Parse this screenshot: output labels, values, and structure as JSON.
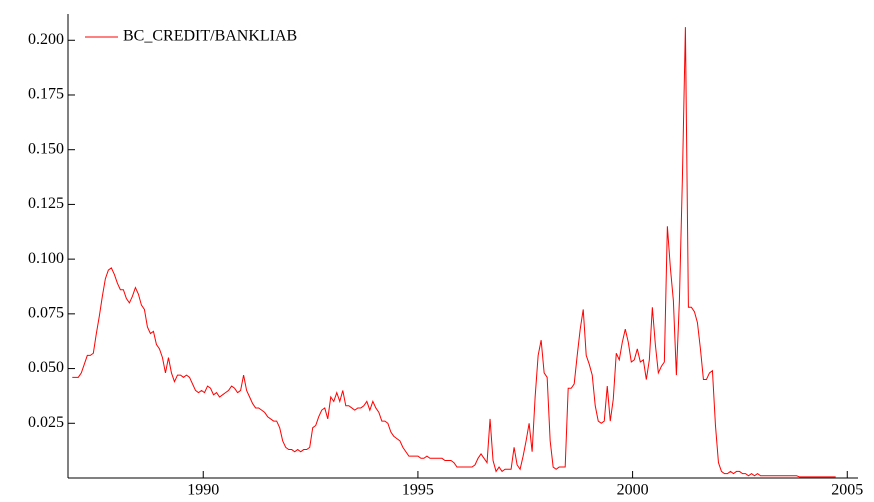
{
  "chart_data": {
    "type": "line",
    "x": [
      1986.95,
      1987.02,
      1987.09,
      1987.16,
      1987.23,
      1987.3,
      1987.37,
      1987.44,
      1987.51,
      1987.58,
      1987.65,
      1987.72,
      1987.79,
      1987.86,
      1987.93,
      1988,
      1988.07,
      1988.14,
      1988.21,
      1988.28,
      1988.35,
      1988.42,
      1988.49,
      1988.56,
      1988.63,
      1988.7,
      1988.77,
      1988.84,
      1988.91,
      1988.98,
      1989.05,
      1989.12,
      1989.19,
      1989.26,
      1989.33,
      1989.4,
      1989.47,
      1989.54,
      1989.61,
      1989.68,
      1989.75,
      1989.82,
      1989.89,
      1989.96,
      1990.03,
      1990.1,
      1990.17,
      1990.24,
      1990.31,
      1990.38,
      1990.45,
      1990.52,
      1990.59,
      1990.66,
      1990.73,
      1990.8,
      1990.87,
      1990.94,
      1991.01,
      1991.08,
      1991.15,
      1991.22,
      1991.29,
      1991.36,
      1991.43,
      1991.5,
      1991.57,
      1991.64,
      1991.71,
      1991.78,
      1991.85,
      1991.92,
      1991.99,
      1992.06,
      1992.13,
      1992.2,
      1992.27,
      1992.34,
      1992.41,
      1992.48,
      1992.55,
      1992.62,
      1992.69,
      1992.76,
      1992.83,
      1992.9,
      1992.97,
      1993.04,
      1993.11,
      1993.18,
      1993.25,
      1993.32,
      1993.39,
      1993.46,
      1993.53,
      1993.6,
      1993.67,
      1993.74,
      1993.81,
      1993.88,
      1993.95,
      1994.02,
      1994.09,
      1994.16,
      1994.23,
      1994.3,
      1994.37,
      1994.44,
      1994.51,
      1994.58,
      1994.65,
      1994.72,
      1994.79,
      1994.86,
      1994.93,
      1995,
      1995.07,
      1995.14,
      1995.21,
      1995.28,
      1995.35,
      1995.42,
      1995.49,
      1995.56,
      1995.63,
      1995.7,
      1995.77,
      1995.84,
      1995.91,
      1995.98,
      1996.05,
      1996.12,
      1996.19,
      1996.26,
      1996.33,
      1996.4,
      1996.47,
      1996.54,
      1996.61,
      1996.68,
      1996.75,
      1996.82,
      1996.89,
      1996.96,
      1997.03,
      1997.1,
      1997.17,
      1997.24,
      1997.31,
      1997.38,
      1997.45,
      1997.52,
      1997.59,
      1997.66,
      1997.73,
      1997.8,
      1997.87,
      1997.94,
      1998.01,
      1998.08,
      1998.15,
      1998.22,
      1998.29,
      1998.36,
      1998.43,
      1998.5,
      1998.57,
      1998.64,
      1998.71,
      1998.78,
      1998.85,
      1998.92,
      1998.99,
      1999.06,
      1999.13,
      1999.2,
      1999.27,
      1999.34,
      1999.41,
      1999.48,
      1999.55,
      1999.62,
      1999.69,
      1999.76,
      1999.83,
      1999.9,
      1999.97,
      2000.04,
      2000.11,
      2000.18,
      2000.25,
      2000.32,
      2000.39,
      2000.46,
      2000.53,
      2000.6,
      2000.67,
      2000.74,
      2000.81,
      2000.88,
      2000.95,
      2001.02,
      2001.09,
      2001.16,
      2001.23,
      2001.3,
      2001.37,
      2001.44,
      2001.51,
      2001.58,
      2001.65,
      2001.72,
      2001.79,
      2001.86,
      2001.93,
      2002,
      2002.07,
      2002.14,
      2002.21,
      2002.28,
      2002.35,
      2002.42,
      2002.49,
      2002.56,
      2002.63,
      2002.7,
      2002.77,
      2002.84,
      2002.91,
      2002.98,
      2003.05,
      2003.12,
      2003.19,
      2003.26,
      2003.33,
      2003.4,
      2003.47,
      2003.54,
      2003.61,
      2003.68,
      2003.75,
      2003.82,
      2003.89,
      2003.96,
      2004.03,
      2004.1,
      2004.17,
      2004.24,
      2004.31,
      2004.38,
      2004.45,
      2004.52,
      2004.59,
      2004.66,
      2004.73
    ],
    "series": [
      {
        "name": "BC_CREDIT/BANKLIAB",
        "color": "#ff0000",
        "values": [
          0.046,
          0.046,
          0.046,
          0.048,
          0.052,
          0.056,
          0.056,
          0.057,
          0.066,
          0.074,
          0.083,
          0.091,
          0.095,
          0.096,
          0.093,
          0.089,
          0.086,
          0.086,
          0.082,
          0.08,
          0.083,
          0.087,
          0.084,
          0.079,
          0.077,
          0.069,
          0.066,
          0.067,
          0.061,
          0.059,
          0.055,
          0.048,
          0.055,
          0.048,
          0.044,
          0.047,
          0.047,
          0.046,
          0.047,
          0.046,
          0.043,
          0.04,
          0.039,
          0.04,
          0.039,
          0.042,
          0.041,
          0.038,
          0.039,
          0.037,
          0.038,
          0.039,
          0.04,
          0.042,
          0.041,
          0.039,
          0.04,
          0.047,
          0.04,
          0.037,
          0.034,
          0.032,
          0.032,
          0.031,
          0.03,
          0.028,
          0.027,
          0.026,
          0.026,
          0.023,
          0.017,
          0.014,
          0.013,
          0.013,
          0.012,
          0.013,
          0.012,
          0.013,
          0.013,
          0.014,
          0.023,
          0.024,
          0.028,
          0.031,
          0.032,
          0.027,
          0.037,
          0.035,
          0.039,
          0.035,
          0.04,
          0.033,
          0.033,
          0.032,
          0.031,
          0.032,
          0.032,
          0.033,
          0.035,
          0.031,
          0.035,
          0.032,
          0.03,
          0.026,
          0.026,
          0.025,
          0.021,
          0.019,
          0.018,
          0.017,
          0.014,
          0.012,
          0.01,
          0.01,
          0.01,
          0.01,
          0.009,
          0.009,
          0.01,
          0.009,
          0.009,
          0.009,
          0.009,
          0.009,
          0.008,
          0.008,
          0.008,
          0.007,
          0.005,
          0.005,
          0.005,
          0.005,
          0.005,
          0.005,
          0.006,
          0.009,
          0.011,
          0.009,
          0.007,
          0.027,
          0.008,
          0.003,
          0.005,
          0.003,
          0.004,
          0.004,
          0.004,
          0.014,
          0.006,
          0.004,
          0.01,
          0.017,
          0.025,
          0.012,
          0.037,
          0.056,
          0.063,
          0.048,
          0.046,
          0.017,
          0.005,
          0.004,
          0.005,
          0.005,
          0.005,
          0.041,
          0.041,
          0.043,
          0.056,
          0.068,
          0.077,
          0.056,
          0.052,
          0.047,
          0.033,
          0.026,
          0.025,
          0.026,
          0.042,
          0.026,
          0.036,
          0.057,
          0.054,
          0.062,
          0.068,
          0.062,
          0.053,
          0.054,
          0.059,
          0.053,
          0.054,
          0.045,
          0.054,
          0.078,
          0.061,
          0.048,
          0.051,
          0.053,
          0.115,
          0.096,
          0.081,
          0.047,
          0.081,
          0.137,
          0.206,
          0.078,
          0.078,
          0.076,
          0.071,
          0.059,
          0.045,
          0.045,
          0.048,
          0.049,
          0.024,
          0.007,
          0.003,
          0.002,
          0.002,
          0.003,
          0.002,
          0.003,
          0.003,
          0.002,
          0.002,
          0.001,
          0.002,
          0.001,
          0.002,
          0.001,
          0.001,
          0.001,
          0.001,
          0.001,
          0.001,
          0.001,
          0.001,
          0.001,
          0.001,
          0.001,
          0.001,
          0.001,
          0.0005,
          0.0005,
          0.0005,
          0.0005,
          0.0005,
          0.0005,
          0.0005,
          0.0005,
          0.0005,
          0.0005,
          0.0005,
          0.0005,
          0.0005
        ]
      }
    ],
    "xlim": [
      1986.85,
      2005.25
    ],
    "xticks": [
      1990,
      1995,
      2000,
      2005
    ],
    "ylim": [
      0,
      0.212
    ],
    "yticks": [
      0.025,
      {
        "value": 0.05,
        "label": "0.050"
      },
      0.075,
      {
        "value": 0.1,
        "label": "0.100"
      },
      0.125,
      {
        "value": 0.15,
        "label": "0.150"
      },
      0.175,
      {
        "value": 0.2,
        "label": "0.200"
      }
    ],
    "legend": "upper left",
    "grid": false
  }
}
